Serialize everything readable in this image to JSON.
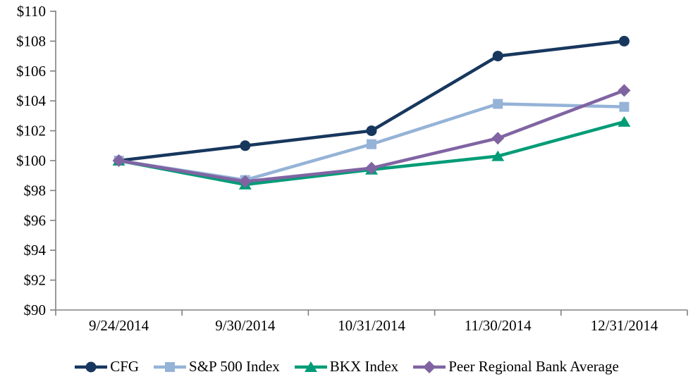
{
  "page": {
    "background": "#FFFFFF",
    "text_color": "#000000",
    "axis_color": "#808080"
  },
  "chart_data": {
    "type": "line",
    "title": "",
    "xlabel": "",
    "ylabel": "",
    "categories": [
      "9/24/2014",
      "9/30/2014",
      "10/31/2014",
      "11/30/2014",
      "12/31/2014"
    ],
    "series": [
      {
        "name": "CFG",
        "color": "#17375E",
        "marker": "circle",
        "values": [
          100.0,
          101.0,
          102.0,
          107.0,
          108.0
        ]
      },
      {
        "name": "S&P 500 Index",
        "color": "#95B3D7",
        "marker": "square",
        "values": [
          100.0,
          98.7,
          101.1,
          103.8,
          103.6
        ]
      },
      {
        "name": "BKX Index",
        "color": "#009C77",
        "marker": "triangle",
        "values": [
          100.0,
          98.4,
          99.4,
          100.3,
          102.6
        ]
      },
      {
        "name": "Peer Regional Bank Average",
        "color": "#8064A2",
        "marker": "diamond",
        "values": [
          100.0,
          98.6,
          99.5,
          101.5,
          104.7
        ]
      }
    ],
    "ylim": [
      90,
      110
    ],
    "ytick_step": 2,
    "ytick_prefix": "$",
    "ytick_labels": [
      "$110",
      "$108",
      "$106",
      "$104",
      "$102",
      "$100",
      "$98",
      "$96",
      "$94",
      "$92",
      "$90"
    ],
    "grid": false,
    "legend_position": "bottom"
  }
}
